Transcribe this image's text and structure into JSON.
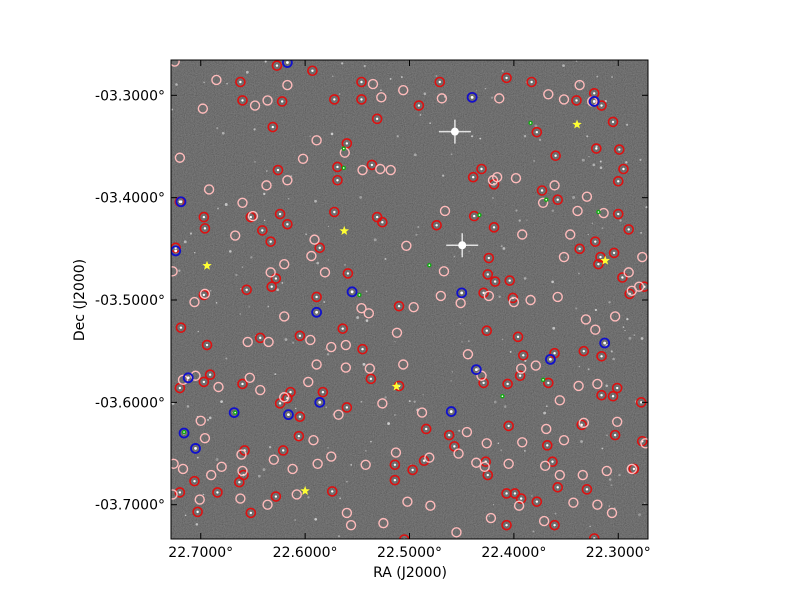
{
  "axes": {
    "xlabel": "RA (J2000)",
    "ylabel": "Dec (J2000)",
    "x_range": [
      22.7285,
      22.2715
    ],
    "y_range": [
      -3.7335,
      -3.2655
    ],
    "x_ticks": [
      {
        "value": 22.7,
        "label": "22.7000°"
      },
      {
        "value": 22.6,
        "label": "22.6000°"
      },
      {
        "value": 22.5,
        "label": "22.5000°"
      },
      {
        "value": 22.4,
        "label": "22.4000°"
      },
      {
        "value": 22.3,
        "label": "22.3000°"
      }
    ],
    "y_ticks": [
      {
        "value": -3.3,
        "label": "-03.3000°"
      },
      {
        "value": -3.4,
        "label": "-03.4000°"
      },
      {
        "value": -3.5,
        "label": "-03.5000°"
      },
      {
        "value": -3.6,
        "label": "-03.6000°"
      },
      {
        "value": -3.7,
        "label": "-03.7000°"
      }
    ]
  },
  "colors": {
    "background": "#3a3a3a",
    "red_marker": "#dd1111",
    "pink_marker": "#ffbbbb",
    "blue_marker": "#1111cc",
    "green_marker": "#11aa11",
    "yellow_star": "#ffff33"
  },
  "bright_stars": [
    {
      "ra": 22.4565,
      "dec": -3.3355
    },
    {
      "ra": 22.4495,
      "dec": -3.4465
    }
  ],
  "yellow_stars": [
    {
      "ra": 22.694,
      "dec": -3.4665
    },
    {
      "ra": 22.5625,
      "dec": -3.4325
    },
    {
      "ra": 22.5125,
      "dec": -3.5845
    },
    {
      "ra": 22.6,
      "dec": -3.6865
    },
    {
      "ra": 22.3395,
      "dec": -3.3285
    },
    {
      "ra": 22.3125,
      "dec": -3.4615
    }
  ],
  "red_circles": [
    [
      22.627,
      -3.271
    ],
    [
      22.593,
      -3.276
    ],
    [
      22.662,
      -3.287
    ],
    [
      22.546,
      -3.287
    ],
    [
      22.471,
      -3.287
    ],
    [
      22.407,
      -3.283
    ],
    [
      22.383,
      -3.287
    ],
    [
      22.546,
      -3.304
    ],
    [
      22.491,
      -3.31
    ],
    [
      22.316,
      -3.31
    ],
    [
      22.66,
      -3.305
    ],
    [
      22.622,
      -3.306
    ],
    [
      22.572,
      -3.304
    ],
    [
      22.631,
      -3.331
    ],
    [
      22.531,
      -3.323
    ],
    [
      22.44,
      -3.302
    ],
    [
      22.34,
      -3.305
    ],
    [
      22.323,
      -3.298
    ],
    [
      22.378,
      -3.336
    ],
    [
      22.305,
      -3.326
    ],
    [
      22.56,
      -3.347
    ],
    [
      22.36,
      -3.359
    ],
    [
      22.321,
      -3.352
    ],
    [
      22.295,
      -3.372
    ],
    [
      22.299,
      -3.353
    ],
    [
      22.626,
      -3.373
    ],
    [
      22.569,
      -3.383
    ],
    [
      22.569,
      -3.37
    ],
    [
      22.536,
      -3.368
    ],
    [
      22.439,
      -3.38
    ],
    [
      22.431,
      -3.372
    ],
    [
      22.419,
      -3.387
    ],
    [
      22.373,
      -3.393
    ],
    [
      22.358,
      -3.402
    ],
    [
      22.3,
      -3.384
    ],
    [
      22.72,
      -3.404
    ],
    [
      22.697,
      -3.419
    ],
    [
      22.696,
      -3.43
    ],
    [
      22.652,
      -3.419
    ],
    [
      22.624,
      -3.416
    ],
    [
      22.617,
      -3.426
    ],
    [
      22.641,
      -3.432
    ],
    [
      22.633,
      -3.443
    ],
    [
      22.572,
      -3.414
    ],
    [
      22.531,
      -3.419
    ],
    [
      22.526,
      -3.424
    ],
    [
      22.474,
      -3.427
    ],
    [
      22.438,
      -3.418
    ],
    [
      22.419,
      -3.429
    ],
    [
      22.3,
      -3.416
    ],
    [
      22.29,
      -3.431
    ],
    [
      22.322,
      -3.443
    ],
    [
      22.317,
      -3.458
    ],
    [
      22.337,
      -3.45
    ],
    [
      22.304,
      -3.454
    ],
    [
      22.724,
      -3.449
    ],
    [
      22.628,
      -3.479
    ],
    [
      22.586,
      -3.449
    ],
    [
      22.559,
      -3.474
    ],
    [
      22.424,
      -3.459
    ],
    [
      22.418,
      -3.482
    ],
    [
      22.425,
      -3.475
    ],
    [
      22.404,
      -3.481
    ],
    [
      22.319,
      -3.465
    ],
    [
      22.296,
      -3.478
    ],
    [
      22.289,
      -3.494
    ],
    [
      22.275,
      -3.487
    ],
    [
      22.697,
      -3.495
    ],
    [
      22.656,
      -3.49
    ],
    [
      22.632,
      -3.487
    ],
    [
      22.589,
      -3.497
    ],
    [
      22.51,
      -3.506
    ],
    [
      22.429,
      -3.493
    ],
    [
      22.401,
      -3.498
    ],
    [
      22.719,
      -3.527
    ],
    [
      22.694,
      -3.544
    ],
    [
      22.643,
      -3.537
    ],
    [
      22.605,
      -3.535
    ],
    [
      22.545,
      -3.548
    ],
    [
      22.564,
      -3.528
    ],
    [
      22.426,
      -3.53
    ],
    [
      22.396,
      -3.536
    ],
    [
      22.391,
      -3.554
    ],
    [
      22.361,
      -3.552
    ],
    [
      22.333,
      -3.55
    ],
    [
      22.316,
      -3.555
    ],
    [
      22.72,
      -3.586
    ],
    [
      22.691,
      -3.573
    ],
    [
      22.697,
      -3.58
    ],
    [
      22.66,
      -3.582
    ],
    [
      22.624,
      -3.601
    ],
    [
      22.617,
      -3.596
    ],
    [
      22.614,
      -3.59
    ],
    [
      22.605,
      -3.614
    ],
    [
      22.583,
      -3.59
    ],
    [
      22.56,
      -3.605
    ],
    [
      22.537,
      -3.577
    ],
    [
      22.51,
      -3.584
    ],
    [
      22.484,
      -3.626
    ],
    [
      22.462,
      -3.632
    ],
    [
      22.457,
      -3.643
    ],
    [
      22.429,
      -3.581
    ],
    [
      22.406,
      -3.582
    ],
    [
      22.394,
      -3.574
    ],
    [
      22.367,
      -3.581
    ],
    [
      22.316,
      -3.593
    ],
    [
      22.305,
      -3.594
    ],
    [
      22.301,
      -3.586
    ],
    [
      22.278,
      -3.6
    ],
    [
      22.606,
      -3.633
    ],
    [
      22.658,
      -3.647
    ],
    [
      22.659,
      -3.671
    ],
    [
      22.621,
      -3.647
    ],
    [
      22.514,
      -3.661
    ],
    [
      22.497,
      -3.666
    ],
    [
      22.486,
      -3.657
    ],
    [
      22.427,
      -3.658
    ],
    [
      22.425,
      -3.671
    ],
    [
      22.405,
      -3.623
    ],
    [
      22.368,
      -3.642
    ],
    [
      22.363,
      -3.658
    ],
    [
      22.335,
      -3.622
    ],
    [
      22.303,
      -3.632
    ],
    [
      22.277,
      -3.638
    ],
    [
      22.285,
      -3.665
    ],
    [
      22.706,
      -3.677
    ],
    [
      22.72,
      -3.688
    ],
    [
      22.663,
      -3.678
    ],
    [
      22.684,
      -3.688
    ],
    [
      22.628,
      -3.692
    ],
    [
      22.574,
      -3.687
    ],
    [
      22.514,
      -3.676
    ],
    [
      22.407,
      -3.689
    ],
    [
      22.399,
      -3.689
    ],
    [
      22.393,
      -3.694
    ],
    [
      22.378,
      -3.697
    ],
    [
      22.358,
      -3.683
    ],
    [
      22.33,
      -3.685
    ],
    [
      22.703,
      -3.707
    ],
    [
      22.652,
      -3.708
    ],
    [
      22.407,
      -3.72
    ],
    [
      22.361,
      -3.72
    ],
    [
      22.323,
      -3.733
    ],
    [
      22.505,
      -3.734
    ]
  ],
  "pink_circles": [
    [
      22.725,
      -3.267
    ],
    [
      22.698,
      -3.313
    ],
    [
      22.685,
      -3.285
    ],
    [
      22.648,
      -3.31
    ],
    [
      22.636,
      -3.305
    ],
    [
      22.617,
      -3.29
    ],
    [
      22.589,
      -3.344
    ],
    [
      22.562,
      -3.356
    ],
    [
      22.535,
      -3.289
    ],
    [
      22.527,
      -3.302
    ],
    [
      22.506,
      -3.295
    ],
    [
      22.469,
      -3.303
    ],
    [
      22.414,
      -3.303
    ],
    [
      22.367,
      -3.299
    ],
    [
      22.352,
      -3.304
    ],
    [
      22.337,
      -3.29
    ],
    [
      22.325,
      -3.306
    ],
    [
      22.72,
      -3.361
    ],
    [
      22.692,
      -3.392
    ],
    [
      22.66,
      -3.405
    ],
    [
      22.65,
      -3.418
    ],
    [
      22.637,
      -3.388
    ],
    [
      22.617,
      -3.383
    ],
    [
      22.602,
      -3.362
    ],
    [
      22.545,
      -3.373
    ],
    [
      22.528,
      -3.372
    ],
    [
      22.518,
      -3.373
    ],
    [
      22.466,
      -3.413
    ],
    [
      22.42,
      -3.383
    ],
    [
      22.416,
      -3.38
    ],
    [
      22.398,
      -3.381
    ],
    [
      22.372,
      -3.405
    ],
    [
      22.361,
      -3.388
    ],
    [
      22.339,
      -3.413
    ],
    [
      22.33,
      -3.399
    ],
    [
      22.314,
      -3.415
    ],
    [
      22.727,
      -3.472
    ],
    [
      22.706,
      -3.502
    ],
    [
      22.667,
      -3.437
    ],
    [
      22.633,
      -3.473
    ],
    [
      22.62,
      -3.465
    ],
    [
      22.594,
      -3.457
    ],
    [
      22.591,
      -3.441
    ],
    [
      22.581,
      -3.473
    ],
    [
      22.503,
      -3.447
    ],
    [
      22.467,
      -3.472
    ],
    [
      22.392,
      -3.436
    ],
    [
      22.352,
      -3.458
    ],
    [
      22.346,
      -3.436
    ],
    [
      22.29,
      -3.473
    ],
    [
      22.277,
      -3.458
    ],
    [
      22.696,
      -3.494
    ],
    [
      22.655,
      -3.541
    ],
    [
      22.635,
      -3.541
    ],
    [
      22.62,
      -3.516
    ],
    [
      22.595,
      -3.539
    ],
    [
      22.575,
      -3.546
    ],
    [
      22.561,
      -3.544
    ],
    [
      22.546,
      -3.508
    ],
    [
      22.539,
      -3.513
    ],
    [
      22.512,
      -3.532
    ],
    [
      22.496,
      -3.507
    ],
    [
      22.47,
      -3.496
    ],
    [
      22.451,
      -3.503
    ],
    [
      22.424,
      -3.496
    ],
    [
      22.4,
      -3.502
    ],
    [
      22.384,
      -3.5
    ],
    [
      22.358,
      -3.497
    ],
    [
      22.331,
      -3.519
    ],
    [
      22.322,
      -3.529
    ],
    [
      22.303,
      -3.516
    ],
    [
      22.287,
      -3.491
    ],
    [
      22.28,
      -3.487
    ],
    [
      22.717,
      -3.578
    ],
    [
      22.705,
      -3.574
    ],
    [
      22.683,
      -3.585
    ],
    [
      22.653,
      -3.576
    ],
    [
      22.643,
      -3.588
    ],
    [
      22.62,
      -3.595
    ],
    [
      22.597,
      -3.58
    ],
    [
      22.589,
      -3.563
    ],
    [
      22.561,
      -3.566
    ],
    [
      22.538,
      -3.567
    ],
    [
      22.506,
      -3.563
    ],
    [
      22.444,
      -3.553
    ],
    [
      22.431,
      -3.574
    ],
    [
      22.393,
      -3.567
    ],
    [
      22.379,
      -3.564
    ],
    [
      22.356,
      -3.598
    ],
    [
      22.338,
      -3.584
    ],
    [
      22.32,
      -3.582
    ],
    [
      22.7,
      -3.618
    ],
    [
      22.696,
      -3.635
    ],
    [
      22.661,
      -3.651
    ],
    [
      22.63,
      -3.656
    ],
    [
      22.592,
      -3.637
    ],
    [
      22.568,
      -3.612
    ],
    [
      22.526,
      -3.601
    ],
    [
      22.488,
      -3.61
    ],
    [
      22.445,
      -3.629
    ],
    [
      22.426,
      -3.64
    ],
    [
      22.392,
      -3.639
    ],
    [
      22.369,
      -3.626
    ],
    [
      22.352,
      -3.637
    ],
    [
      22.333,
      -3.62
    ],
    [
      22.301,
      -3.619
    ],
    [
      22.274,
      -3.64
    ],
    [
      22.726,
      -3.66
    ],
    [
      22.717,
      -3.665
    ],
    [
      22.69,
      -3.671
    ],
    [
      22.68,
      -3.663
    ],
    [
      22.66,
      -3.667
    ],
    [
      22.612,
      -3.665
    ],
    [
      22.588,
      -3.66
    ],
    [
      22.575,
      -3.653
    ],
    [
      22.542,
      -3.661
    ],
    [
      22.513,
      -3.649
    ],
    [
      22.481,
      -3.654
    ],
    [
      22.453,
      -3.65
    ],
    [
      22.436,
      -3.659
    ],
    [
      22.428,
      -3.663
    ],
    [
      22.405,
      -3.66
    ],
    [
      22.37,
      -3.662
    ],
    [
      22.356,
      -3.671
    ],
    [
      22.334,
      -3.671
    ],
    [
      22.311,
      -3.667
    ],
    [
      22.287,
      -3.665
    ],
    [
      22.727,
      -3.69
    ],
    [
      22.701,
      -3.695
    ],
    [
      22.662,
      -3.694
    ],
    [
      22.636,
      -3.7
    ],
    [
      22.608,
      -3.69
    ],
    [
      22.56,
      -3.708
    ],
    [
      22.556,
      -3.72
    ],
    [
      22.525,
      -3.718
    ],
    [
      22.502,
      -3.697
    ],
    [
      22.48,
      -3.701
    ],
    [
      22.455,
      -3.727
    ],
    [
      22.422,
      -3.713
    ],
    [
      22.395,
      -3.701
    ],
    [
      22.371,
      -3.716
    ],
    [
      22.343,
      -3.698
    ],
    [
      22.32,
      -3.7
    ],
    [
      22.306,
      -3.708
    ]
  ],
  "blue_circles": [
    [
      22.617,
      -3.268
    ],
    [
      22.44,
      -3.302
    ],
    [
      22.323,
      -3.306
    ],
    [
      22.719,
      -3.404
    ],
    [
      22.724,
      -3.452
    ],
    [
      22.555,
      -3.492
    ],
    [
      22.589,
      -3.512
    ],
    [
      22.45,
      -3.493
    ],
    [
      22.365,
      -3.558
    ],
    [
      22.313,
      -3.542
    ],
    [
      22.712,
      -3.576
    ],
    [
      22.668,
      -3.61
    ],
    [
      22.616,
      -3.612
    ],
    [
      22.586,
      -3.6
    ],
    [
      22.46,
      -3.609
    ],
    [
      22.436,
      -3.568
    ],
    [
      22.716,
      -3.63
    ],
    [
      22.705,
      -3.645
    ]
  ],
  "green_dots": [
    [
      22.563,
      -3.352
    ],
    [
      22.563,
      -3.371
    ],
    [
      22.384,
      -3.327
    ],
    [
      22.548,
      -3.495
    ],
    [
      22.433,
      -3.417
    ],
    [
      22.481,
      -3.466
    ],
    [
      22.369,
      -3.402
    ],
    [
      22.319,
      -3.414
    ],
    [
      22.372,
      -3.578
    ],
    [
      22.411,
      -3.594
    ],
    [
      22.667,
      -3.61
    ],
    [
      22.716,
      -3.629
    ]
  ]
}
